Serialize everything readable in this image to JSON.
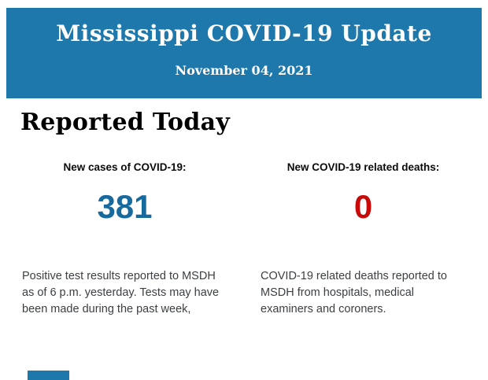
{
  "colors": {
    "header_bg": "#1F78AB",
    "header_text": "#FFFFFF",
    "heading_text": "#000000",
    "label_text": "#0B0B0B",
    "cases_value": "#176A9E",
    "deaths_value": "#C90A0A",
    "body_text": "#3C4043",
    "page_bg": "#FFFFFF"
  },
  "header": {
    "title": "Mississippi COVID-19 Update",
    "date": "November 04, 2021"
  },
  "section": {
    "heading": "Reported Today"
  },
  "stats": [
    {
      "label": "New cases of COVID-19:",
      "value": "381",
      "description": "Positive test results reported to MSDH as of 6 p.m. yesterday. Tests may have been made during the past week,"
    },
    {
      "label": "New COVID-19 related deaths:",
      "value": "0",
      "description": "COVID-19 related deaths reported to MSDH from hospitals, medical examiners and coroners."
    }
  ]
}
